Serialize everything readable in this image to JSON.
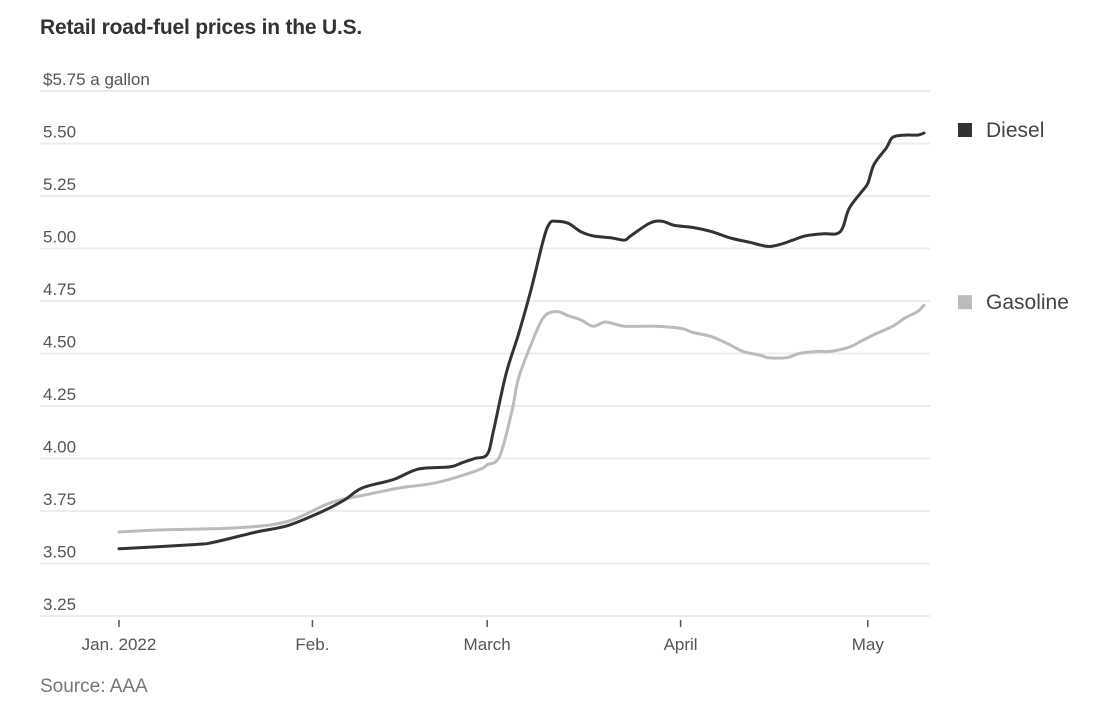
{
  "chart_data": {
    "type": "line",
    "title": "Retail road-fuel prices in the U.S.",
    "ylabel": "$5.75 a gallon",
    "xlabel": "",
    "source": "Source: AAA",
    "ylim": [
      3.25,
      5.75
    ],
    "yticks": [
      {
        "value": 5.75,
        "label": "$5.75 a gallon"
      },
      {
        "value": 5.5,
        "label": "5.50"
      },
      {
        "value": 5.25,
        "label": "5.25"
      },
      {
        "value": 5.0,
        "label": "5.00"
      },
      {
        "value": 4.75,
        "label": "4.75"
      },
      {
        "value": 4.5,
        "label": "4.50"
      },
      {
        "value": 4.25,
        "label": "4.25"
      },
      {
        "value": 4.0,
        "label": "4.00"
      },
      {
        "value": 3.75,
        "label": "3.75"
      },
      {
        "value": 3.5,
        "label": "3.50"
      },
      {
        "value": 3.25,
        "label": "3.25"
      }
    ],
    "x_unit": "days since Jan. 1, 2022",
    "xlim": [
      0,
      129
    ],
    "xticks": [
      {
        "day": 0,
        "label": "Jan. 2022"
      },
      {
        "day": 31,
        "label": "Feb."
      },
      {
        "day": 59,
        "label": "March"
      },
      {
        "day": 90,
        "label": "April"
      },
      {
        "day": 120,
        "label": "May"
      }
    ],
    "grid": true,
    "legend_placement": "right, at line ends",
    "series": [
      {
        "name": "Diesel",
        "color": "#333333",
        "points": [
          [
            0,
            3.57
          ],
          [
            12,
            3.59
          ],
          [
            15,
            3.6
          ],
          [
            22,
            3.65
          ],
          [
            27,
            3.68
          ],
          [
            32,
            3.74
          ],
          [
            36,
            3.8
          ],
          [
            39,
            3.86
          ],
          [
            44,
            3.9
          ],
          [
            48,
            3.95
          ],
          [
            53,
            3.96
          ],
          [
            55,
            3.98
          ],
          [
            57,
            4.0
          ],
          [
            59,
            4.02
          ],
          [
            60,
            4.13
          ],
          [
            62,
            4.4
          ],
          [
            64,
            4.59
          ],
          [
            66,
            4.8
          ],
          [
            68,
            5.04
          ],
          [
            69,
            5.12
          ],
          [
            70,
            5.13
          ],
          [
            72,
            5.12
          ],
          [
            74,
            5.08
          ],
          [
            76,
            5.06
          ],
          [
            79,
            5.05
          ],
          [
            81,
            5.04
          ],
          [
            82,
            5.06
          ],
          [
            85,
            5.12
          ],
          [
            87,
            5.13
          ],
          [
            89,
            5.11
          ],
          [
            92,
            5.1
          ],
          [
            95,
            5.08
          ],
          [
            98,
            5.05
          ],
          [
            101,
            5.03
          ],
          [
            104,
            5.01
          ],
          [
            106,
            5.02
          ],
          [
            108,
            5.04
          ],
          [
            110,
            5.06
          ],
          [
            113,
            5.07
          ],
          [
            115,
            5.07
          ],
          [
            116,
            5.1
          ],
          [
            117,
            5.19
          ],
          [
            119,
            5.27
          ],
          [
            120,
            5.31
          ],
          [
            121,
            5.4
          ],
          [
            123,
            5.48
          ],
          [
            124,
            5.53
          ],
          [
            126,
            5.54
          ],
          [
            128,
            5.54
          ],
          [
            129,
            5.55
          ]
        ]
      },
      {
        "name": "Gasoline",
        "color": "#bbbbbb",
        "points": [
          [
            0,
            3.65
          ],
          [
            7,
            3.66
          ],
          [
            19,
            3.67
          ],
          [
            27,
            3.7
          ],
          [
            34,
            3.79
          ],
          [
            40,
            3.83
          ],
          [
            45,
            3.86
          ],
          [
            50,
            3.88
          ],
          [
            54,
            3.91
          ],
          [
            58,
            3.95
          ],
          [
            59,
            3.97
          ],
          [
            61,
            4.01
          ],
          [
            63,
            4.23
          ],
          [
            64,
            4.38
          ],
          [
            66,
            4.54
          ],
          [
            68,
            4.67
          ],
          [
            70,
            4.7
          ],
          [
            72,
            4.68
          ],
          [
            74,
            4.66
          ],
          [
            76,
            4.63
          ],
          [
            78,
            4.65
          ],
          [
            81,
            4.63
          ],
          [
            86,
            4.63
          ],
          [
            90,
            4.62
          ],
          [
            92,
            4.6
          ],
          [
            95,
            4.58
          ],
          [
            98,
            4.54
          ],
          [
            100,
            4.51
          ],
          [
            103,
            4.49
          ],
          [
            104,
            4.48
          ],
          [
            107,
            4.48
          ],
          [
            109,
            4.5
          ],
          [
            112,
            4.51
          ],
          [
            114,
            4.51
          ],
          [
            117,
            4.53
          ],
          [
            119,
            4.56
          ],
          [
            121,
            4.59
          ],
          [
            124,
            4.63
          ],
          [
            126,
            4.67
          ],
          [
            128,
            4.7
          ],
          [
            129,
            4.73
          ]
        ]
      }
    ]
  }
}
